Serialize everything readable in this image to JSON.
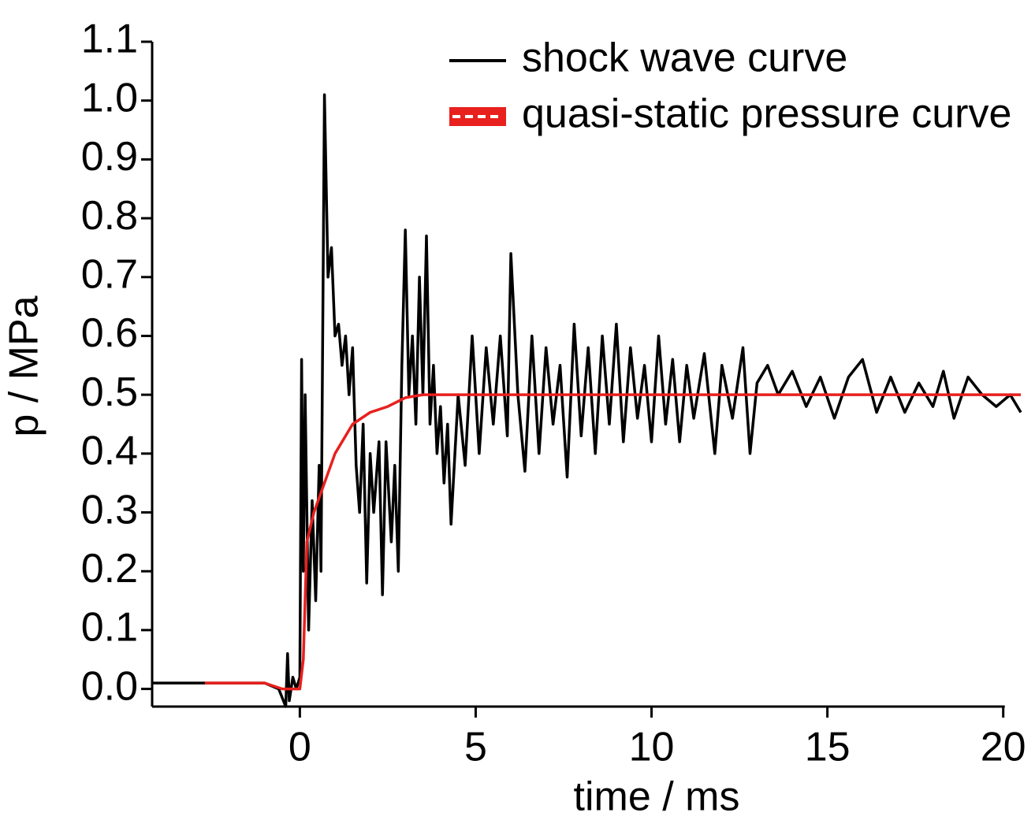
{
  "chart_data": {
    "type": "line",
    "x_label": "time / ms",
    "y_label": "p / MPa",
    "xlim": [
      -4.2,
      20.5
    ],
    "ylim": [
      -0.03,
      1.1
    ],
    "xticks": [
      0,
      5,
      10,
      15,
      20
    ],
    "yticks": [
      {
        "value": 0,
        "label": "0.0"
      },
      0.1,
      0.2,
      0.3,
      0.4,
      0.5,
      0.6,
      0.7,
      0.8,
      0.9,
      {
        "value": 1,
        "label": "1.0"
      },
      1.1
    ],
    "legend": "upper right",
    "series": [
      {
        "name": "shock wave curve",
        "color": "#000000",
        "x": [
          -4.2,
          -3,
          -2,
          -1,
          -0.6,
          -0.4,
          -0.35,
          -0.3,
          -0.2,
          -0.1,
          0,
          0.05,
          0.1,
          0.15,
          0.25,
          0.35,
          0.45,
          0.55,
          0.6,
          0.7,
          0.8,
          0.9,
          1.0,
          1.1,
          1.2,
          1.3,
          1.4,
          1.5,
          1.6,
          1.7,
          1.8,
          1.9,
          2.0,
          2.1,
          2.25,
          2.35,
          2.45,
          2.6,
          2.7,
          2.8,
          2.9,
          3.0,
          3.1,
          3.2,
          3.3,
          3.4,
          3.5,
          3.6,
          3.7,
          3.8,
          3.9,
          4.0,
          4.1,
          4.2,
          4.3,
          4.5,
          4.7,
          4.9,
          5.1,
          5.3,
          5.5,
          5.7,
          5.9,
          6.0,
          6.2,
          6.4,
          6.6,
          6.8,
          7.0,
          7.2,
          7.4,
          7.6,
          7.8,
          8.0,
          8.2,
          8.4,
          8.6,
          8.8,
          9.0,
          9.2,
          9.4,
          9.6,
          9.8,
          10.0,
          10.2,
          10.4,
          10.6,
          10.8,
          11.0,
          11.2,
          11.5,
          11.8,
          12.0,
          12.3,
          12.6,
          12.8,
          13.0,
          13.3,
          13.6,
          14.0,
          14.4,
          14.8,
          15.2,
          15.6,
          16.0,
          16.4,
          16.8,
          17.2,
          17.6,
          18.0,
          18.3,
          18.6,
          19.0,
          19.4,
          19.8,
          20.2,
          20.5
        ],
        "values": [
          0.01,
          0.01,
          0.01,
          0.01,
          0.0,
          -0.03,
          0.06,
          -0.02,
          0.02,
          0.0,
          0.02,
          0.56,
          0.2,
          0.5,
          0.1,
          0.32,
          0.15,
          0.38,
          0.2,
          1.01,
          0.7,
          0.75,
          0.6,
          0.62,
          0.55,
          0.6,
          0.5,
          0.58,
          0.38,
          0.3,
          0.45,
          0.18,
          0.4,
          0.3,
          0.42,
          0.16,
          0.42,
          0.25,
          0.38,
          0.2,
          0.55,
          0.78,
          0.5,
          0.6,
          0.45,
          0.7,
          0.5,
          0.77,
          0.45,
          0.55,
          0.4,
          0.48,
          0.35,
          0.45,
          0.28,
          0.5,
          0.38,
          0.6,
          0.4,
          0.58,
          0.45,
          0.6,
          0.43,
          0.74,
          0.5,
          0.37,
          0.6,
          0.4,
          0.58,
          0.45,
          0.55,
          0.36,
          0.62,
          0.43,
          0.58,
          0.4,
          0.6,
          0.45,
          0.62,
          0.42,
          0.58,
          0.46,
          0.55,
          0.42,
          0.6,
          0.45,
          0.56,
          0.42,
          0.55,
          0.46,
          0.57,
          0.4,
          0.55,
          0.46,
          0.58,
          0.4,
          0.52,
          0.55,
          0.5,
          0.54,
          0.48,
          0.53,
          0.46,
          0.53,
          0.56,
          0.47,
          0.53,
          0.47,
          0.52,
          0.48,
          0.54,
          0.46,
          0.53,
          0.5,
          0.48,
          0.5,
          0.47
        ]
      },
      {
        "name": "quasi-static pressure curve",
        "color": "#e8201e",
        "x": [
          -2.7,
          -1.5,
          -1,
          -0.5,
          0,
          0.1,
          0.2,
          0.4,
          0.7,
          1.0,
          1.5,
          2.0,
          2.5,
          3.0,
          3.5,
          5,
          10,
          15,
          20.5
        ],
        "values": [
          0.01,
          0.01,
          0.01,
          0.0,
          0.0,
          0.05,
          0.25,
          0.3,
          0.35,
          0.4,
          0.45,
          0.47,
          0.48,
          0.495,
          0.5,
          0.5,
          0.5,
          0.5,
          0.5
        ]
      }
    ]
  }
}
